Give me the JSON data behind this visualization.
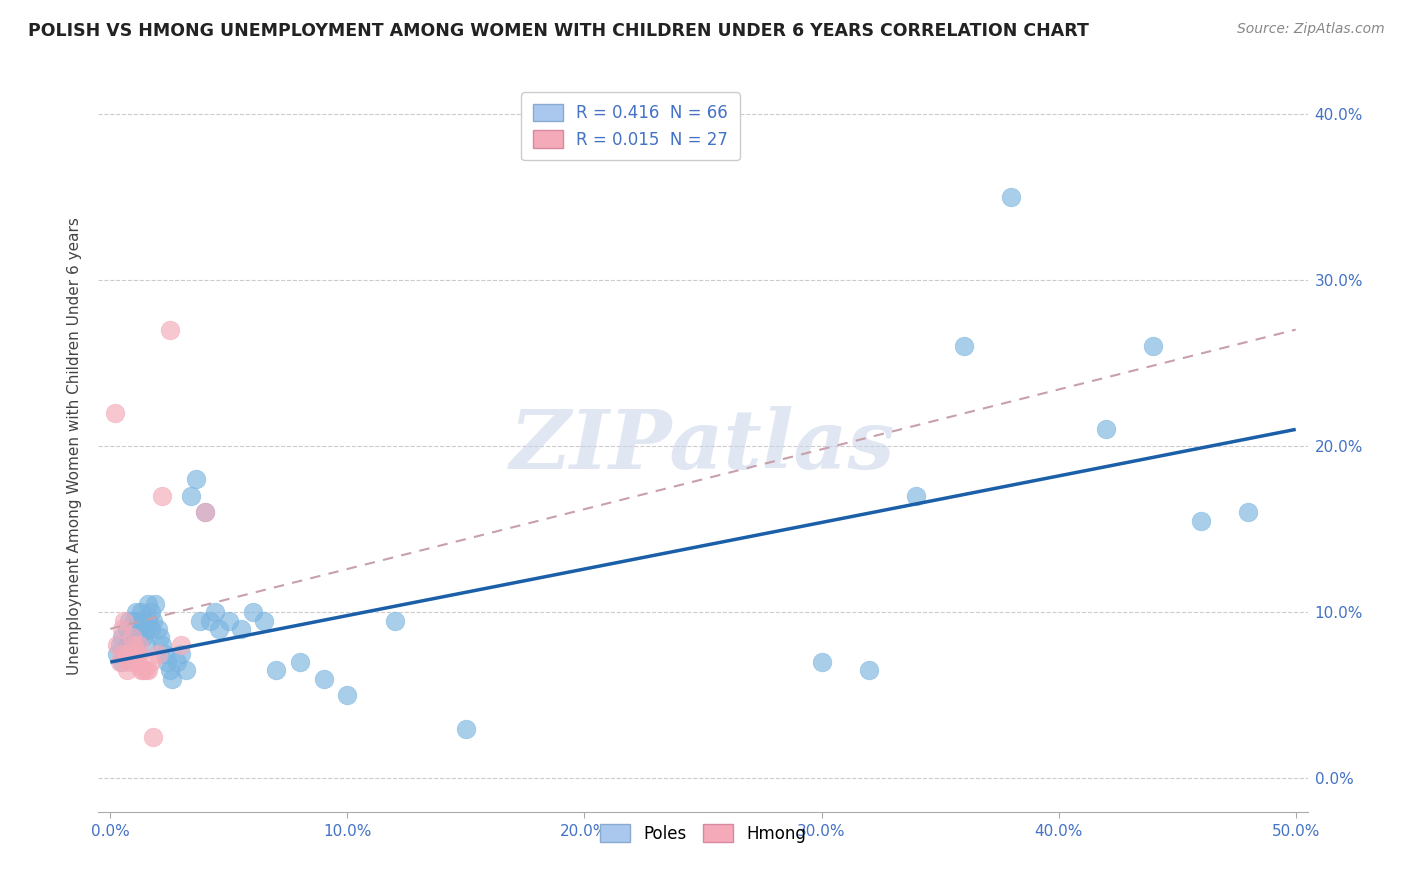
{
  "title": "POLISH VS HMONG UNEMPLOYMENT AMONG WOMEN WITH CHILDREN UNDER 6 YEARS CORRELATION CHART",
  "source": "Source: ZipAtlas.com",
  "ylabel_label": "Unemployment Among Women with Children Under 6 years",
  "legend_R_entries": [
    {
      "label": "R = 0.416  N = 66",
      "color": "#aac8ee"
    },
    {
      "label": "R = 0.015  N = 27",
      "color": "#f4aab8"
    }
  ],
  "poles_color": "#7ab4e0",
  "hmong_color": "#f4aab8",
  "poles_regression_color": "#1a5fa8",
  "hmong_regression_color": "#c8a0aa",
  "background_color": "#ffffff",
  "watermark_text": "ZIPatlas",
  "poles_x": [
    0.003,
    0.004,
    0.005,
    0.005,
    0.006,
    0.007,
    0.007,
    0.008,
    0.008,
    0.009,
    0.009,
    0.01,
    0.01,
    0.011,
    0.011,
    0.011,
    0.012,
    0.012,
    0.013,
    0.013,
    0.014,
    0.014,
    0.015,
    0.015,
    0.016,
    0.016,
    0.017,
    0.017,
    0.018,
    0.019,
    0.02,
    0.021,
    0.022,
    0.023,
    0.024,
    0.025,
    0.026,
    0.028,
    0.03,
    0.032,
    0.034,
    0.036,
    0.038,
    0.04,
    0.042,
    0.044,
    0.046,
    0.05,
    0.055,
    0.06,
    0.065,
    0.07,
    0.08,
    0.09,
    0.1,
    0.12,
    0.15,
    0.3,
    0.32,
    0.34,
    0.36,
    0.38,
    0.42,
    0.44,
    0.46,
    0.48
  ],
  "poles_y": [
    0.075,
    0.08,
    0.07,
    0.085,
    0.075,
    0.08,
    0.09,
    0.085,
    0.095,
    0.08,
    0.09,
    0.085,
    0.095,
    0.08,
    0.09,
    0.1,
    0.085,
    0.095,
    0.09,
    0.1,
    0.085,
    0.095,
    0.08,
    0.09,
    0.095,
    0.105,
    0.09,
    0.1,
    0.095,
    0.105,
    0.09,
    0.085,
    0.08,
    0.075,
    0.07,
    0.065,
    0.06,
    0.07,
    0.075,
    0.065,
    0.17,
    0.18,
    0.095,
    0.16,
    0.095,
    0.1,
    0.09,
    0.095,
    0.09,
    0.1,
    0.095,
    0.065,
    0.07,
    0.06,
    0.05,
    0.095,
    0.03,
    0.07,
    0.065,
    0.17,
    0.26,
    0.35,
    0.21,
    0.26,
    0.155,
    0.16
  ],
  "hmong_x": [
    0.002,
    0.003,
    0.004,
    0.005,
    0.005,
    0.006,
    0.007,
    0.007,
    0.008,
    0.009,
    0.009,
    0.01,
    0.01,
    0.011,
    0.012,
    0.012,
    0.013,
    0.014,
    0.015,
    0.016,
    0.017,
    0.018,
    0.02,
    0.022,
    0.025,
    0.03,
    0.04
  ],
  "hmong_y": [
    0.22,
    0.08,
    0.07,
    0.075,
    0.09,
    0.095,
    0.075,
    0.065,
    0.07,
    0.075,
    0.085,
    0.08,
    0.075,
    0.07,
    0.075,
    0.08,
    0.065,
    0.065,
    0.065,
    0.065,
    0.07,
    0.025,
    0.075,
    0.17,
    0.27,
    0.08,
    0.16
  ],
  "xlim": [
    0.0,
    0.5
  ],
  "ylim": [
    0.0,
    0.42
  ],
  "xticks": [
    0.0,
    0.1,
    0.2,
    0.3,
    0.4,
    0.5
  ],
  "yticks": [
    0.0,
    0.1,
    0.2,
    0.3,
    0.4
  ],
  "xtick_labels": [
    "0.0%",
    "10.0%",
    "20.0%",
    "30.0%",
    "40.0%",
    "50.0%"
  ],
  "ytick_labels": [
    "0.0%",
    "10.0%",
    "20.0%",
    "30.0%",
    "40.0%"
  ]
}
